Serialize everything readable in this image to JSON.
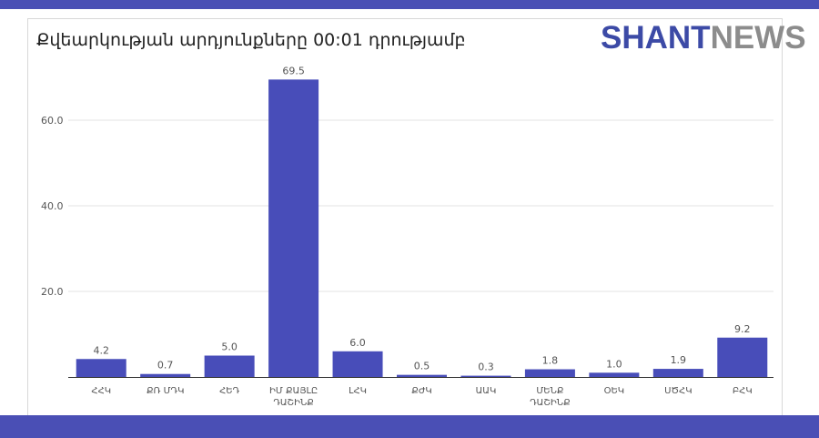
{
  "header": {
    "title": "Քվեարկության արդյունքները 00:01 դրությամբ",
    "logo_part1": "SHANT",
    "logo_part2": "NEWS"
  },
  "colors": {
    "bar": "#484db9",
    "band": "#4a4fb5",
    "logo_primary": "#3c4aa6",
    "logo_secondary": "#8c8c8c"
  },
  "chart_data": {
    "type": "bar",
    "title": "Քվեարկության արդյունքները 00:01 դրությամբ",
    "categories": [
      [
        "ՀՀԿ"
      ],
      [
        "ՔՌ ՄԴԿ"
      ],
      [
        "ՀԵԴ"
      ],
      [
        "ԻՄ ՔԱՅԼԸ",
        "ԴԱՇԻՆՔ"
      ],
      [
        "ԼՀԿ"
      ],
      [
        "ՔԺԿ"
      ],
      [
        "ԱԱԿ"
      ],
      [
        "ՄԵՆՔ",
        "ԴԱՇԻՆՔ"
      ],
      [
        "ՕԵԿ"
      ],
      [
        "ՍԾՀԿ"
      ],
      [
        "ԲՀԿ"
      ]
    ],
    "values": [
      4.2,
      0.7,
      5.0,
      69.5,
      6.0,
      0.5,
      0.3,
      1.8,
      1.0,
      1.9,
      9.2
    ],
    "value_labels": [
      "4.2",
      "0.7",
      "5.0",
      "69.5",
      "6.0",
      "0.5",
      "0.3",
      "1.8",
      "1.0",
      "1.9",
      "9.2"
    ],
    "yticks": [
      "20.0",
      "40.0",
      "60.0"
    ],
    "ytick_values": [
      20,
      40,
      60
    ],
    "ylim": [
      0,
      75
    ],
    "grid": true,
    "legend": "none"
  }
}
